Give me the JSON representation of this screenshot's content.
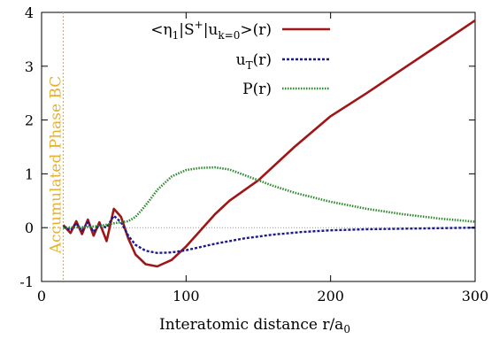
{
  "chart_data": {
    "type": "line",
    "xlabel": "Interatomic distance r/a",
    "xlabel_sub": "0",
    "ylabel": "",
    "xlim": [
      0,
      300
    ],
    "ylim": [
      -1,
      4
    ],
    "x_ticks": [
      0,
      100,
      200,
      300
    ],
    "y_ticks": [
      -1,
      0,
      1,
      2,
      3,
      4
    ],
    "x_tick_labels": [
      "0",
      "100",
      "200",
      "300"
    ],
    "y_tick_labels": [
      "-1",
      "0",
      "1",
      "2",
      "3",
      "4"
    ],
    "grid": false,
    "legend_position": "top-right",
    "zero_reference_line": true,
    "annotation": {
      "text": "Accumulated Phase BC",
      "x": 15,
      "color": "#e6b02e"
    },
    "series": [
      {
        "name": "<η1|S+|uk=0>(r)",
        "legend": {
          "pre": "<η",
          "sub1": "1",
          "mid1": "|S",
          "sup": "+",
          "mid2": "|u",
          "sub2": "k=0",
          "post": ">(r)"
        },
        "color": "#a01515",
        "style": "solid",
        "points": [
          [
            15,
            0.05
          ],
          [
            20,
            -0.1
          ],
          [
            24,
            0.12
          ],
          [
            28,
            -0.12
          ],
          [
            32,
            0.15
          ],
          [
            36,
            -0.15
          ],
          [
            40,
            0.1
          ],
          [
            45,
            -0.25
          ],
          [
            50,
            0.35
          ],
          [
            55,
            0.2
          ],
          [
            60,
            -0.2
          ],
          [
            65,
            -0.5
          ],
          [
            72,
            -0.68
          ],
          [
            80,
            -0.72
          ],
          [
            90,
            -0.6
          ],
          [
            100,
            -0.35
          ],
          [
            110,
            -0.05
          ],
          [
            120,
            0.25
          ],
          [
            130,
            0.5
          ],
          [
            150,
            0.88
          ],
          [
            175,
            1.5
          ],
          [
            200,
            2.07
          ],
          [
            225,
            2.5
          ],
          [
            250,
            2.95
          ],
          [
            275,
            3.4
          ],
          [
            300,
            3.85
          ]
        ]
      },
      {
        "name": "uT(r)",
        "legend": {
          "pre": "u",
          "sub": "T",
          "post": "(r)"
        },
        "color": "#1a1a8c",
        "style": "dashed",
        "points": [
          [
            15,
            0.02
          ],
          [
            20,
            -0.05
          ],
          [
            24,
            0.08
          ],
          [
            28,
            -0.06
          ],
          [
            32,
            0.1
          ],
          [
            36,
            -0.08
          ],
          [
            40,
            0.05
          ],
          [
            45,
            0.0
          ],
          [
            50,
            0.22
          ],
          [
            55,
            0.1
          ],
          [
            60,
            -0.15
          ],
          [
            65,
            -0.32
          ],
          [
            72,
            -0.43
          ],
          [
            80,
            -0.47
          ],
          [
            90,
            -0.46
          ],
          [
            100,
            -0.42
          ],
          [
            110,
            -0.36
          ],
          [
            120,
            -0.3
          ],
          [
            140,
            -0.2
          ],
          [
            160,
            -0.13
          ],
          [
            180,
            -0.08
          ],
          [
            200,
            -0.05
          ],
          [
            225,
            -0.03
          ],
          [
            250,
            -0.02
          ],
          [
            275,
            -0.01
          ],
          [
            300,
            0.0
          ]
        ]
      },
      {
        "name": "P(r)",
        "legend": {
          "pre": "P",
          "post": "(r)"
        },
        "color": "#2a8a2a",
        "style": "dotted",
        "points": [
          [
            15,
            0.0
          ],
          [
            30,
            0.01
          ],
          [
            40,
            0.03
          ],
          [
            50,
            0.08
          ],
          [
            60,
            0.12
          ],
          [
            65,
            0.2
          ],
          [
            70,
            0.35
          ],
          [
            75,
            0.52
          ],
          [
            80,
            0.7
          ],
          [
            90,
            0.95
          ],
          [
            100,
            1.07
          ],
          [
            110,
            1.11
          ],
          [
            120,
            1.12
          ],
          [
            130,
            1.08
          ],
          [
            140,
            0.98
          ],
          [
            150,
            0.88
          ],
          [
            160,
            0.78
          ],
          [
            175,
            0.65
          ],
          [
            200,
            0.48
          ],
          [
            225,
            0.35
          ],
          [
            250,
            0.25
          ],
          [
            275,
            0.17
          ],
          [
            300,
            0.11
          ]
        ]
      }
    ]
  }
}
